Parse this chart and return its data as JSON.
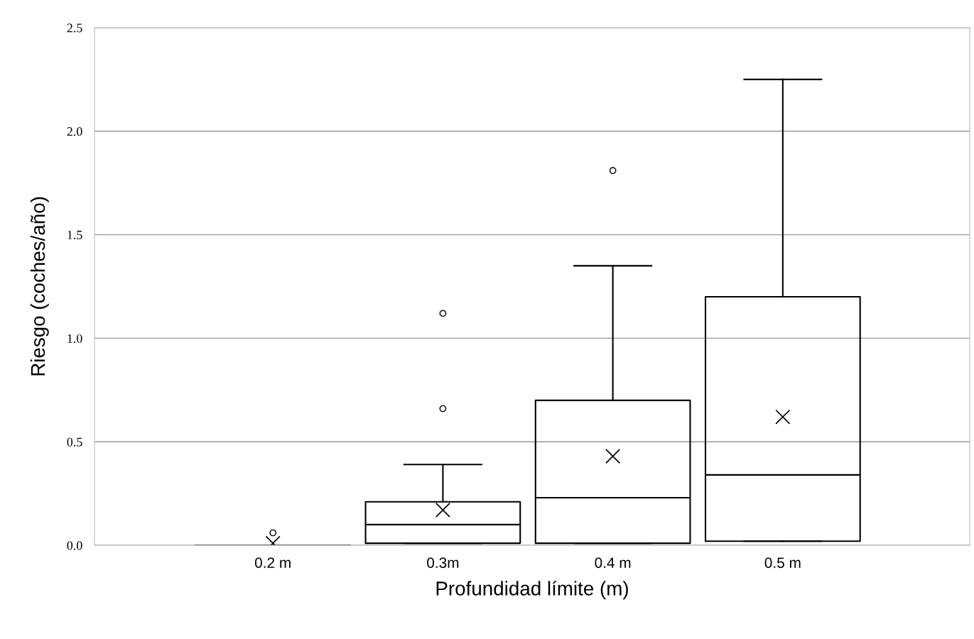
{
  "chart_data": {
    "type": "box",
    "xlabel": "Profundidad límite (m)",
    "ylabel": "Riesgo (coches/año)",
    "categories": [
      "0.2 m",
      "0.3m",
      "0.4 m",
      "0.5 m"
    ],
    "boxes": [
      {
        "low": 0,
        "q1": 0,
        "median": 0,
        "q3": 0,
        "high": 0,
        "mean": 0.01,
        "outliers": [
          0.06
        ]
      },
      {
        "low": 0.01,
        "q1": 0.01,
        "median": 0.1,
        "q3": 0.21,
        "high": 0.39,
        "mean": 0.17,
        "outliers": [
          0.66,
          1.12
        ]
      },
      {
        "low": 0.01,
        "q1": 0.01,
        "median": 0.23,
        "q3": 0.7,
        "high": 1.35,
        "mean": 0.43,
        "outliers": [
          1.81
        ]
      },
      {
        "low": 0.02,
        "q1": 0.02,
        "median": 0.34,
        "q3": 1.2,
        "high": 2.25,
        "mean": 0.62
      }
    ],
    "color": "#000000",
    "ylim": [
      0,
      2.5
    ],
    "yticks": [
      {
        "value": 0,
        "label": "0.0"
      },
      {
        "value": 0.5,
        "label": "0.5"
      },
      {
        "value": 1.0,
        "label": "1.0"
      },
      {
        "value": 1.5,
        "label": "1.5"
      },
      {
        "value": 2.0,
        "label": "2.0"
      },
      {
        "value": 2.5,
        "label": "2.5"
      }
    ],
    "grid": "y"
  }
}
